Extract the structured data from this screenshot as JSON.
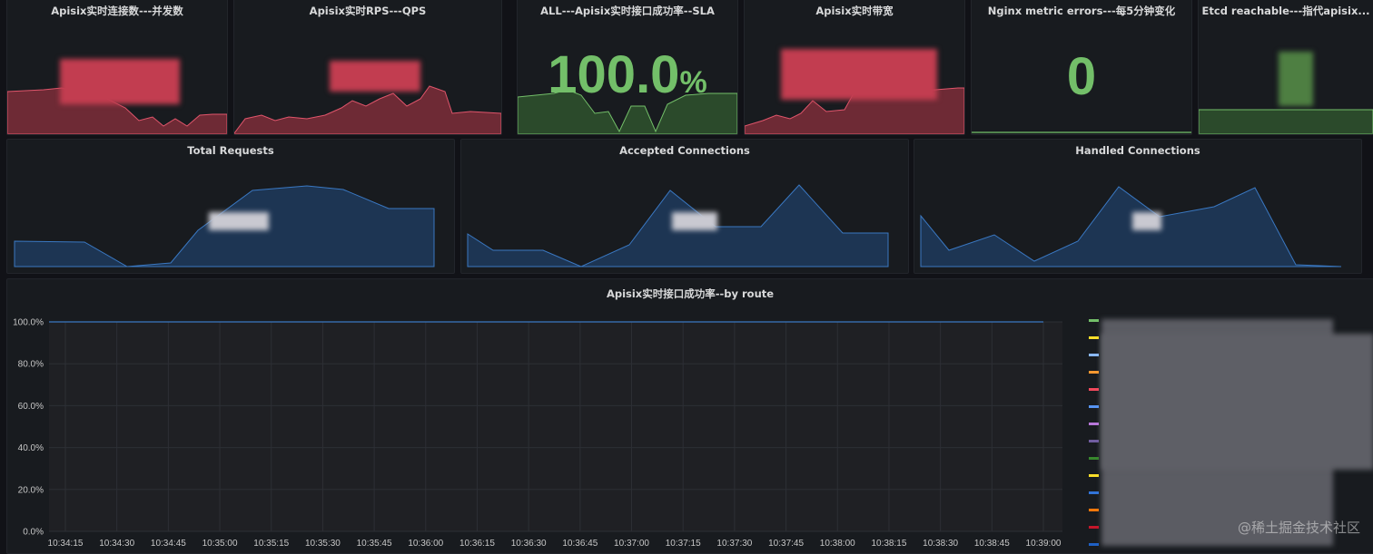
{
  "top_panels": [
    {
      "title": "Apisix实时连接数---并发数"
    },
    {
      "title": "Apisix实时RPS---QPS"
    },
    {
      "title": "ALL---Apisix实时接口成功率--SLA",
      "value": "100.0",
      "unit": "%"
    },
    {
      "title": "Apisix实时带宽"
    },
    {
      "title": "Nginx metric errors---每5分钟变化",
      "value": "0"
    },
    {
      "title": "Etcd reachable---指代apisix..."
    }
  ],
  "mid_panels": [
    {
      "title": "Total Requests"
    },
    {
      "title": "Accepted Connections"
    },
    {
      "title": "Handled Connections"
    }
  ],
  "route_panel": {
    "title": "Apisix实时接口成功率--by route",
    "chart_data": {
      "type": "line",
      "x": [
        "10:34:15",
        "10:34:30",
        "10:34:45",
        "10:35:00",
        "10:35:15",
        "10:35:30",
        "10:35:45",
        "10:36:00",
        "10:36:15",
        "10:36:30",
        "10:36:45",
        "10:37:00",
        "10:37:15",
        "10:37:30",
        "10:37:45",
        "10:38:00",
        "10:38:15",
        "10:38:30",
        "10:38:45",
        "10:39:00"
      ],
      "y_ticks": [
        "100.0%",
        "80.0%",
        "60.0%",
        "40.0%",
        "20.0%",
        "0.0%"
      ],
      "ylim": [
        0,
        100
      ],
      "series": [
        {
          "values": [
            100,
            100,
            100,
            100,
            100,
            100,
            100,
            100,
            100,
            100,
            100,
            100,
            100,
            100,
            100,
            100,
            100,
            100,
            100,
            100
          ]
        }
      ],
      "grid": true
    },
    "legend_colors": [
      "#73bf69",
      "#fade2a",
      "#8ab8ff",
      "#ff9830",
      "#f2495c",
      "#5794f2",
      "#b877d9",
      "#705da0",
      "#37872d",
      "#fade2a",
      "#3274d9",
      "#ff780a",
      "#c4162a",
      "#1f60c4"
    ]
  },
  "watermark": "@稀土掘金技术社区",
  "colors": {
    "red_fill": "#6e2a35",
    "red_line": "#e0556b",
    "green_fill": "#2b4a2b",
    "green_line": "#73bf69",
    "blue_fill": "#1d3553",
    "blue_line": "#3a78c2",
    "value_green": "#73bf69"
  }
}
